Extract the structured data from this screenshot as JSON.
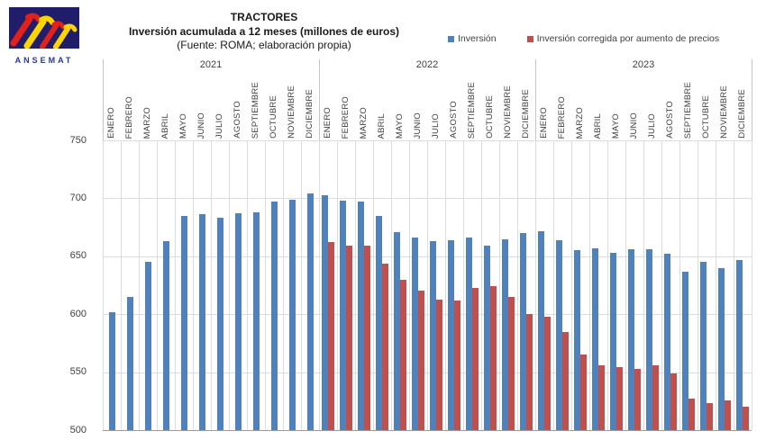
{
  "logo": {
    "text": "ANSEMAT",
    "colors": {
      "background": "#201D6B",
      "red": "#E32119",
      "yellow": "#FFD500",
      "wordmark": "#2B3990"
    }
  },
  "chart_data": {
    "type": "bar",
    "title": "TRACTORES",
    "subtitle": "Inversión acumulada a 12 meses (millones de euros)",
    "source": "(Fuente: ROMA; elaboración propia)",
    "ylim": [
      500,
      750
    ],
    "yticks": [
      750,
      700,
      650,
      600,
      550,
      500
    ],
    "grid": true,
    "legend_position": "top-right",
    "years": [
      "2021",
      "2022",
      "2023"
    ],
    "months": [
      "ENERO",
      "FEBRERO",
      "MARZO",
      "ABRIL",
      "MAYO",
      "JUNIO",
      "JULIO",
      "AGOSTO",
      "SEPTIEMBRE",
      "OCTUBRE",
      "NOVIEMBRE",
      "DICIEMBRE"
    ],
    "series": [
      {
        "name": "Inversión",
        "color": "#4F81BD",
        "values": [
          602,
          615,
          645,
          663,
          685,
          686,
          683,
          687,
          688,
          697,
          699,
          704,
          703,
          698,
          697,
          685,
          671,
          666,
          663,
          664,
          666,
          659,
          665,
          670,
          672,
          664,
          655,
          657,
          653,
          656,
          656,
          652,
          637,
          645,
          640,
          647
        ]
      },
      {
        "name": "Inversión corregida por aumento de precios",
        "color": "#C0504D",
        "values": [
          null,
          null,
          null,
          null,
          null,
          null,
          null,
          null,
          null,
          null,
          null,
          null,
          662,
          659,
          659,
          644,
          630,
          620,
          613,
          612,
          623,
          624,
          615,
          600,
          598,
          585,
          565,
          556,
          554,
          553,
          556,
          549,
          527,
          523,
          526,
          520
        ]
      }
    ]
  }
}
